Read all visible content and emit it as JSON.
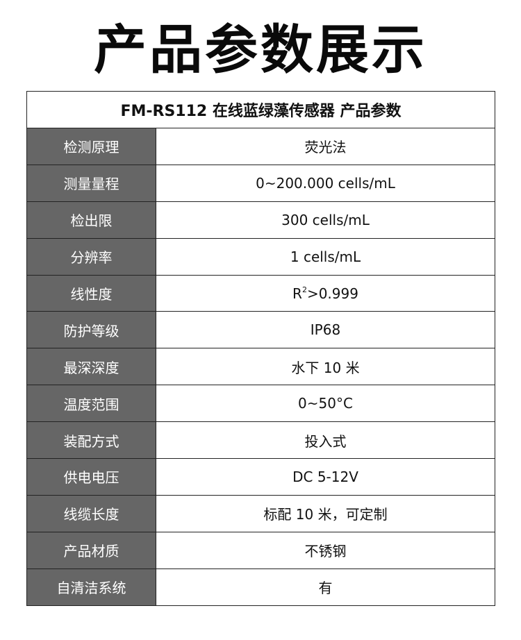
{
  "page_title": "产品参数展示",
  "table": {
    "header": "FM-RS112 在线蓝绿藻传感器 产品参数",
    "rows": [
      {
        "label": "检测原理",
        "value": "荧光法"
      },
      {
        "label": "测量量程",
        "value": "0~200.000 cells/mL"
      },
      {
        "label": "检出限",
        "value": "300 cells/mL"
      },
      {
        "label": "分辨率",
        "value": "1 cells/mL"
      },
      {
        "label": "线性度",
        "value_prefix": "R",
        "value_sup": "2",
        "value_suffix": ">0.999"
      },
      {
        "label": "防护等级",
        "value": "IP68"
      },
      {
        "label": "最深深度",
        "value": "水下 10 米"
      },
      {
        "label": "温度范围",
        "value": "0~50°C"
      },
      {
        "label": "装配方式",
        "value": "投入式"
      },
      {
        "label": "供电电压",
        "value": "DC 5-12V"
      },
      {
        "label": "线缆长度",
        "value": "标配 10 米，可定制"
      },
      {
        "label": "产品材质",
        "value": "不锈钢"
      },
      {
        "label": "自清洁系统",
        "value": "有"
      }
    ]
  },
  "colors": {
    "label_bg": "#666666",
    "border": "#222222"
  }
}
